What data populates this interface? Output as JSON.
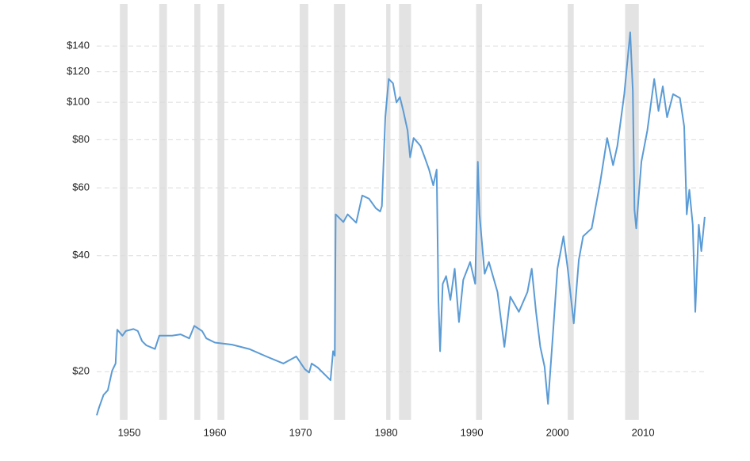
{
  "chart_data": {
    "type": "line",
    "log_y": true,
    "grid": true,
    "color": "#5b9bd5",
    "recession_color": "#e3e3e3",
    "xlim": [
      1946.2,
      2017.3
    ],
    "ylim": [
      15,
      180
    ],
    "xticks": [
      1950,
      1960,
      1970,
      1980,
      1990,
      2000,
      2010
    ],
    "yticks": [
      {
        "value": 20,
        "label": "$20"
      },
      {
        "value": 40,
        "label": "$40"
      },
      {
        "value": 60,
        "label": "$60"
      },
      {
        "value": 80,
        "label": "$80"
      },
      {
        "value": 100,
        "label": "$100"
      },
      {
        "value": 120,
        "label": "$120"
      },
      {
        "value": 140,
        "label": "$140"
      }
    ],
    "recessions": [
      [
        1948.9,
        1949.8
      ],
      [
        1953.5,
        1954.4
      ],
      [
        1957.6,
        1958.3
      ],
      [
        1960.3,
        1961.1
      ],
      [
        1969.9,
        1970.9
      ],
      [
        1973.9,
        1975.2
      ],
      [
        1980.0,
        1980.5
      ],
      [
        1981.5,
        1982.9
      ],
      [
        1990.5,
        1991.2
      ],
      [
        2001.2,
        2001.9
      ],
      [
        2007.9,
        2009.5
      ]
    ],
    "x": [
      1946.2,
      1946.5,
      1947.0,
      1947.5,
      1948.0,
      1948.4,
      1948.6,
      1949.2,
      1949.6,
      1950.5,
      1951.0,
      1951.5,
      1952.0,
      1953.0,
      1953.5,
      1955.0,
      1956.0,
      1957.0,
      1957.6,
      1958.5,
      1959.0,
      1960.0,
      1962.0,
      1964.0,
      1966.0,
      1968.0,
      1969.5,
      1970.5,
      1971.0,
      1971.3,
      1972.0,
      1973.5,
      1973.8,
      1974.0,
      1974.1,
      1975.0,
      1975.5,
      1976.5,
      1977.2,
      1978.0,
      1978.8,
      1979.3,
      1979.5,
      1979.9,
      1980.3,
      1980.8,
      1981.2,
      1981.6,
      1982.0,
      1982.5,
      1982.8,
      1983.2,
      1984.0,
      1984.5,
      1985.0,
      1985.5,
      1985.9,
      1986.1,
      1986.3,
      1986.6,
      1987.0,
      1987.5,
      1988.0,
      1988.5,
      1989.0,
      1989.8,
      1990.4,
      1990.7,
      1990.9,
      1991.5,
      1992.0,
      1993.0,
      1993.8,
      1994.5,
      1995.5,
      1996.5,
      1997.0,
      1997.5,
      1998.0,
      1998.5,
      1998.9,
      1999.5,
      2000.0,
      2000.7,
      2001.2,
      2001.9,
      2002.5,
      2003.0,
      2004.0,
      2005.0,
      2005.8,
      2006.5,
      2007.0,
      2007.8,
      2008.5,
      2008.8,
      2009.0,
      2009.2,
      2009.8,
      2010.5,
      2011.3,
      2011.8,
      2012.3,
      2012.8,
      2013.5,
      2014.3,
      2014.8,
      2015.1,
      2015.4,
      2015.8,
      2016.1,
      2016.5,
      2016.8,
      2017.2
    ],
    "values": [
      15.4,
      16.2,
      17.4,
      17.9,
      20.1,
      21.0,
      25.7,
      24.8,
      25.5,
      25.8,
      25.5,
      24.0,
      23.4,
      22.9,
      24.8,
      24.8,
      25.0,
      24.4,
      26.3,
      25.5,
      24.4,
      23.8,
      23.5,
      22.9,
      21.9,
      21.0,
      21.9,
      20.3,
      19.9,
      21.0,
      20.5,
      19.0,
      22.6,
      22.0,
      51.2,
      48.9,
      51.2,
      48.7,
      57.3,
      56.2,
      53.1,
      52.1,
      53.8,
      91.5,
      115,
      112,
      99.9,
      103.2,
      95,
      84.5,
      72,
      80.8,
      77.1,
      72,
      67,
      60.9,
      66.9,
      30.7,
      22.6,
      33.8,
      35.4,
      30.7,
      37,
      26.9,
      34.6,
      38.5,
      33.8,
      70.1,
      51.2,
      35.9,
      38.5,
      32.2,
      23.2,
      31.3,
      28.6,
      32.2,
      37,
      28.6,
      23.2,
      20.6,
      16.5,
      25.5,
      37,
      44.9,
      37,
      26.7,
      39,
      44.9,
      47.1,
      62.1,
      80.8,
      68.7,
      77.1,
      105,
      152,
      107,
      52.6,
      47.1,
      70.1,
      84.5,
      115,
      95,
      110,
      91.5,
      105,
      102.6,
      86.6,
      51.2,
      59.3,
      48.1,
      28.6,
      48.1,
      41.1,
      50.4
    ]
  }
}
